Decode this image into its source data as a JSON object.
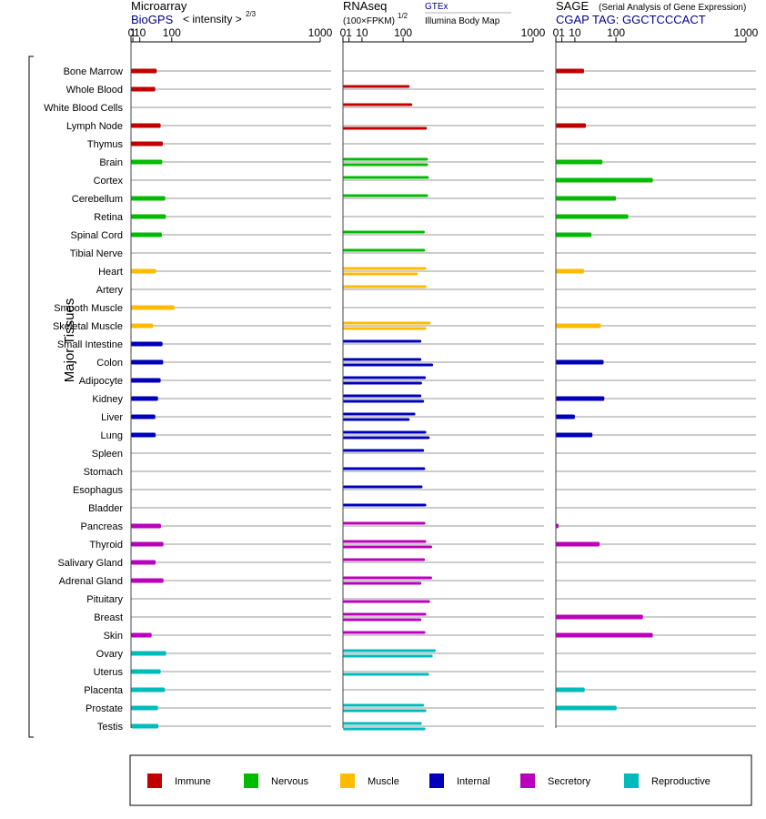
{
  "colors": {
    "immune": "#c00000",
    "nervous": "#00bb00",
    "muscle": "#ffbb00",
    "internal": "#0000bb",
    "secretory": "#bb00bb",
    "reproductive": "#00bbbb",
    "grid": "#9a9a9a",
    "axis": "#000000",
    "blue_text": "#000088"
  },
  "y_axis_label": "Major Tissues",
  "legend": [
    {
      "key": "immune",
      "label": "Immune"
    },
    {
      "key": "nervous",
      "label": "Nervous"
    },
    {
      "key": "muscle",
      "label": "Muscle"
    },
    {
      "key": "internal",
      "label": "Internal"
    },
    {
      "key": "secretory",
      "label": "Secretory"
    },
    {
      "key": "reproductive",
      "label": "Reproductive"
    }
  ],
  "panels": {
    "microarray": {
      "title": "Microarray",
      "source": "BioGPS",
      "scale_label": "< intensity >",
      "scale_exp": "2/3"
    },
    "rnaseq": {
      "title": "RNAseq",
      "unit": "(100×FPKM)",
      "unit_exp": "1/2",
      "source1": "GTEx",
      "source2": "Illumina Body Map"
    },
    "sage": {
      "title": "SAGE",
      "subtitle": "(Serial Analysis of Gene Expression)",
      "tag": "CGAP TAG: GGCTCCCACT"
    }
  },
  "chart_data": {
    "type": "bar",
    "orientation": "horizontal",
    "x_scale": "power (2/3 for microarray, 1/2 for RNAseq, 1/2 for SAGE)",
    "x_ticks": [
      0,
      1,
      10,
      100,
      1000
    ],
    "xlim": [
      0,
      1000
    ],
    "grid": true,
    "legend_position": "bottom",
    "categories": [
      "Bone Marrow",
      "Whole Blood",
      "White Blood Cells",
      "Lymph Node",
      "Thymus",
      "Brain",
      "Cortex",
      "Cerebellum",
      "Retina",
      "Spinal Cord",
      "Tibial Nerve",
      "Heart",
      "Artery",
      "Smooth Muscle",
      "Skeletal Muscle",
      "Small Intestine",
      "Colon",
      "Adipocyte",
      "Kidney",
      "Liver",
      "Lung",
      "Spleen",
      "Stomach",
      "Esophagus",
      "Bladder",
      "Pancreas",
      "Thyroid",
      "Salivary Gland",
      "Adrenal Gland",
      "Pituitary",
      "Breast",
      "Skin",
      "Ovary",
      "Uterus",
      "Placenta",
      "Prostate",
      "Testis"
    ],
    "groups": [
      "immune",
      "immune",
      "immune",
      "immune",
      "immune",
      "nervous",
      "nervous",
      "nervous",
      "nervous",
      "nervous",
      "nervous",
      "muscle",
      "muscle",
      "muscle",
      "muscle",
      "internal",
      "internal",
      "internal",
      "internal",
      "internal",
      "internal",
      "internal",
      "internal",
      "internal",
      "internal",
      "secretory",
      "secretory",
      "secretory",
      "secretory",
      "secretory",
      "secretory",
      "secretory",
      "reproductive",
      "reproductive",
      "reproductive",
      "reproductive",
      "reproductive"
    ],
    "series": [
      {
        "name": "Microarray",
        "values": [
          50,
          46,
          null,
          62,
          69,
          67,
          null,
          77,
          79,
          66,
          null,
          48,
          null,
          110,
          40,
          68,
          70,
          62,
          54,
          46,
          47,
          null,
          null,
          null,
          null,
          63,
          71,
          47,
          71,
          null,
          null,
          36,
          80,
          62,
          76,
          54,
          55
        ]
      },
      {
        "name": "RNAseq (GTEx)",
        "values": [
          null,
          123,
          133,
          null,
          null,
          200,
          204,
          200,
          null,
          185,
          187,
          192,
          193,
          null,
          213,
          170,
          170,
          190,
          170,
          145,
          192,
          182,
          187,
          175,
          192,
          188,
          192,
          186,
          220,
          null,
          192,
          188,
          238,
          null,
          null,
          182,
          172
        ]
      },
      {
        "name": "RNAseq (Illumina Body Map)",
        "values": [
          null,
          null,
          null,
          195,
          null,
          200,
          null,
          null,
          null,
          null,
          null,
          155,
          null,
          null,
          192,
          null,
          225,
          173,
          182,
          123,
          208,
          null,
          null,
          null,
          null,
          null,
          220,
          null,
          170,
          210,
          170,
          null,
          223,
          205,
          null,
          192,
          188
        ]
      },
      {
        "name": "SAGE",
        "values": [
          22,
          null,
          null,
          25,
          null,
          60,
          260,
          100,
          145,
          35,
          null,
          22,
          null,
          null,
          56,
          null,
          63,
          null,
          65,
          10,
          37,
          null,
          null,
          null,
          null,
          0.2,
          53,
          null,
          null,
          null,
          210,
          260,
          null,
          null,
          23,
          102,
          null
        ]
      }
    ]
  }
}
